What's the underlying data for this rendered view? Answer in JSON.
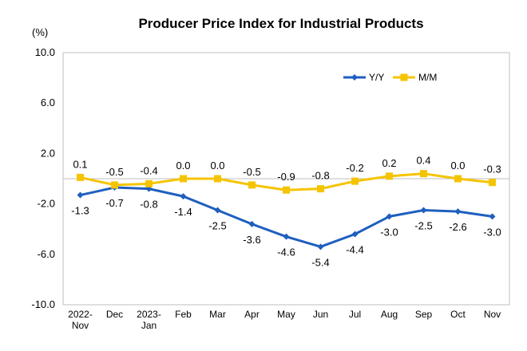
{
  "chart_data": {
    "type": "line",
    "title": "Producer Price Index for Industrial Products",
    "ylabel": "(%)",
    "xlabel": "",
    "categories": [
      [
        "2022-",
        "Nov"
      ],
      [
        "Dec"
      ],
      [
        "2023-",
        "Jan"
      ],
      [
        "Feb"
      ],
      [
        "Mar"
      ],
      [
        "Apr"
      ],
      [
        "May"
      ],
      [
        "Jun"
      ],
      [
        "Jul"
      ],
      [
        "Aug"
      ],
      [
        "Sep"
      ],
      [
        "Oct"
      ],
      [
        "Nov"
      ]
    ],
    "ylim": [
      -10.0,
      10.0
    ],
    "yticks": [
      10.0,
      6.0,
      2.0,
      -2.0,
      -6.0,
      -10.0
    ],
    "ytick_labels": [
      "10.0",
      "6.0",
      "2.0",
      "-2.0",
      "-6.0",
      "-10.0"
    ],
    "grid": false,
    "legend_position": "top-right",
    "series": [
      {
        "name": "Y/Y",
        "color": "#1f5fbf",
        "marker": "diamond",
        "values": [
          -1.3,
          -0.7,
          -0.8,
          -1.4,
          -2.5,
          -3.6,
          -4.6,
          -5.4,
          -4.4,
          -3.0,
          -2.5,
          -2.6,
          -3.0
        ],
        "labels": [
          "-1.3",
          "-0.7",
          "-0.8",
          "-1.4",
          "-2.5",
          "-3.6",
          "-4.6",
          "-5.4",
          "-4.4",
          "-3.0",
          "-2.5",
          "-2.6",
          "-3.0"
        ],
        "label_side": [
          "below",
          "below",
          "below",
          "below",
          "below",
          "below",
          "below",
          "below",
          "below",
          "below",
          "below",
          "below",
          "below"
        ]
      },
      {
        "name": "M/M",
        "color": "#f5c400",
        "marker": "square",
        "values": [
          0.1,
          -0.5,
          -0.4,
          0.0,
          0.0,
          -0.5,
          -0.9,
          -0.8,
          -0.2,
          0.2,
          0.4,
          0.0,
          -0.3
        ],
        "labels": [
          "0.1",
          "-0.5",
          "-0.4",
          "0.0",
          "0.0",
          "-0.5",
          "-0.9",
          "-0.8",
          "-0.2",
          "0.2",
          "0.4",
          "0.0",
          "-0.3"
        ],
        "label_side": [
          "above",
          "above",
          "above",
          "above",
          "above",
          "above",
          "above",
          "above",
          "above",
          "above",
          "above",
          "above",
          "above"
        ]
      }
    ]
  }
}
